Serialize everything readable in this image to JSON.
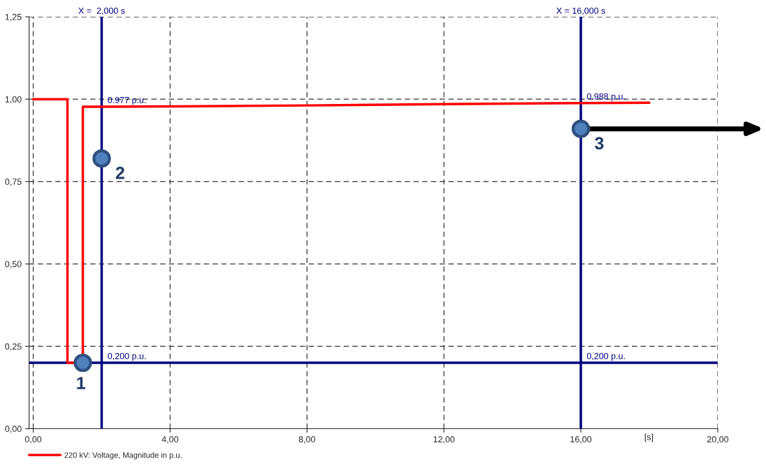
{
  "chart_data": {
    "type": "line",
    "xlabel": "[s]",
    "x": [
      0,
      1,
      1,
      1.45,
      1.45,
      2,
      4,
      8,
      12,
      16,
      18
    ],
    "series": [
      {
        "name": "220 kV: Voltage, Magnitude in p.u.",
        "color": "#ff0000",
        "values": [
          1,
          1,
          0.2,
          0.2,
          0.977,
          0.977,
          0.978,
          0.981,
          0.985,
          0.988,
          0.989
        ]
      }
    ],
    "xlim": [
      -0.12,
      20
    ],
    "ylim": [
      0,
      1.25
    ],
    "xticks": [
      {
        "value": 0,
        "label": "0,00"
      },
      {
        "value": 4,
        "label": "4,00"
      },
      {
        "value": 8,
        "label": "8,00"
      },
      {
        "value": 12,
        "label": "12,00"
      },
      {
        "value": 16,
        "label": "16,00"
      },
      {
        "value": 20,
        "label": "20,00"
      }
    ],
    "yticks": [
      {
        "value": 0,
        "label": "0,00"
      },
      {
        "value": 0.25,
        "label": "0,25"
      },
      {
        "value": 0.5,
        "label": "0,50"
      },
      {
        "value": 0.75,
        "label": "0,75"
      },
      {
        "value": 1,
        "label": "1,00"
      },
      {
        "value": 1.25,
        "label": "1,25"
      }
    ],
    "ref_lines": [
      {
        "axis": "x",
        "value": 2,
        "label": "X =  2,000 s",
        "color": "#000080"
      },
      {
        "axis": "x",
        "value": 16,
        "label": "X = 16,000 s",
        "color": "#000080"
      },
      {
        "axis": "y",
        "value": 0.2,
        "color": "#000080"
      }
    ],
    "annotations": [
      {
        "text": "0.977 p.u.",
        "x": 2,
        "y": 0.977
      },
      {
        "text": "0.988 p.u.",
        "x": 16,
        "y": 0.988
      },
      {
        "text": "0,200 p.u.",
        "x": 2,
        "y": 0.2
      },
      {
        "text": "0,200 p.u.",
        "x": 16,
        "y": 0.2
      },
      {
        "text": "1",
        "x": 1.45,
        "y": 0.2
      },
      {
        "text": "2",
        "x": 2,
        "y": 0.82
      },
      {
        "text": "3",
        "x": 16,
        "y": 0.91
      }
    ],
    "grid": true,
    "legend": "bottom",
    "line_style": "solid",
    "marker": "none"
  }
}
